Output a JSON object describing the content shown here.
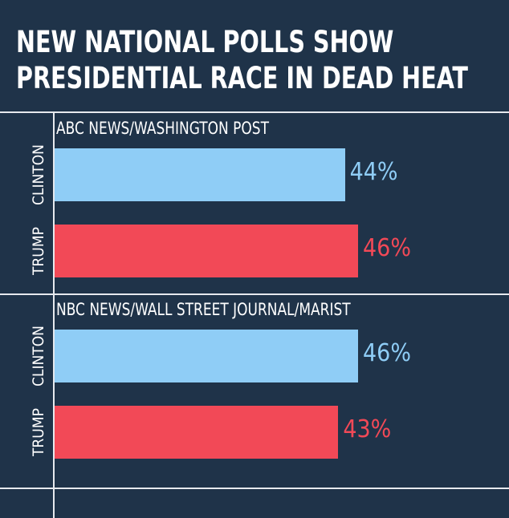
{
  "title": {
    "line1": "NEW NATIONAL POLLS SHOW",
    "line2": "PRESIDENTIAL RACE IN DEAD HEAT"
  },
  "colors": {
    "background": "#1f3349",
    "clinton": "#8fcdf6",
    "trump": "#f24957",
    "text": "#ffffff"
  },
  "chart_data": {
    "type": "bar",
    "orientation": "horizontal",
    "title": "NEW NATIONAL POLLS SHOW PRESIDENTIAL RACE IN DEAD HEAT",
    "unit": "%",
    "xlim": [
      0,
      55
    ],
    "groups": [
      {
        "poll": "ABC NEWS/WASHINGTON POST",
        "bars": [
          {
            "candidate": "CLINTON",
            "value": 44,
            "label": "44%",
            "color": "#8fcdf6"
          },
          {
            "candidate": "TRUMP",
            "value": 46,
            "label": "46%",
            "color": "#f24957"
          }
        ]
      },
      {
        "poll": "NBC NEWS/WALL STREET JOURNAL/MARIST",
        "bars": [
          {
            "candidate": "CLINTON",
            "value": 46,
            "label": "46%",
            "color": "#8fcdf6"
          },
          {
            "candidate": "TRUMP",
            "value": 43,
            "label": "43%",
            "color": "#f24957"
          }
        ]
      }
    ]
  }
}
